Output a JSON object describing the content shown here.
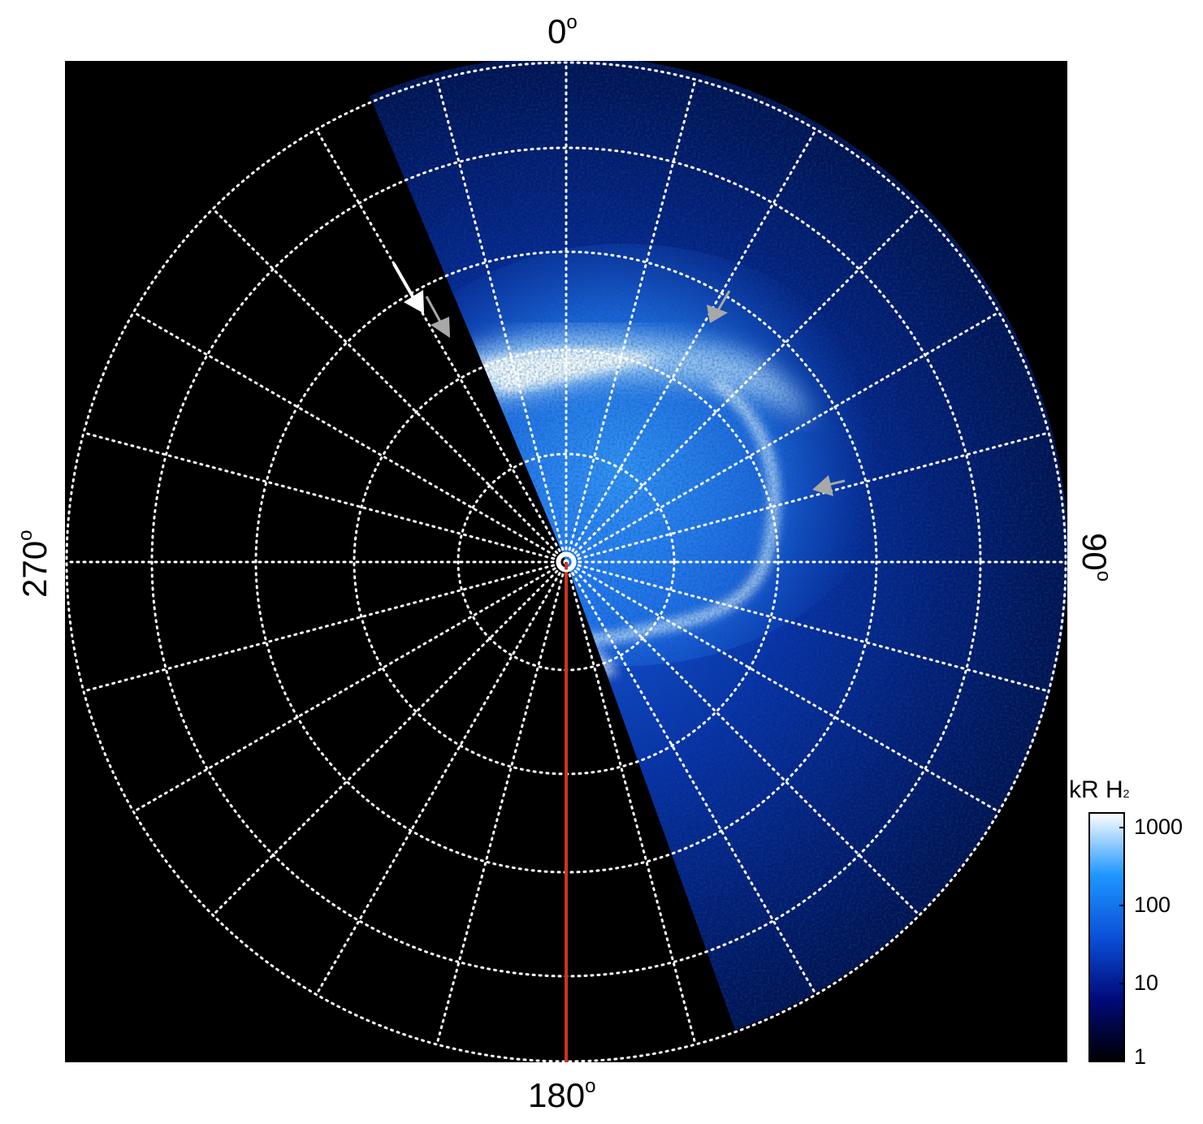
{
  "image_description_labels": {
    "top": "0",
    "right": "90",
    "bottom": "180",
    "left": "270",
    "degree_symbol": "o"
  },
  "colorbar": {
    "title_main": "kR H",
    "title_sub": "2",
    "ticks": [
      "1000",
      "100",
      "10",
      "1"
    ],
    "colors": {
      "low": "#000000",
      "mid1": "#000a7a",
      "mid2": "#0a50d8",
      "mid3": "#1e96ff",
      "high": "#ffffff"
    }
  },
  "colors": {
    "background": "#000000",
    "grid": "#ffffff",
    "meridian_line": "#c8371c",
    "arrow_white": "#ffffff",
    "arrow_grey": "#a8a8a8"
  }
}
